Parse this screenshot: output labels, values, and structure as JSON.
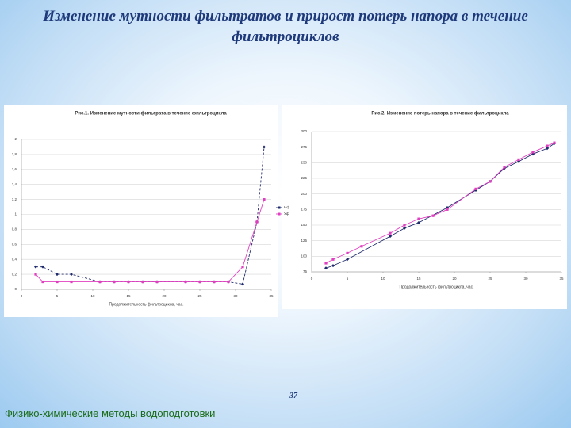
{
  "title": "Изменение мутности фильтратов и прирост потерь напора в течение фильтроциклов",
  "page_number": "37",
  "footer": "Физико-химические методы водоподготовки",
  "chart_data": [
    {
      "type": "line",
      "title": "Рис.1. Изменение мутности фильтрата в течение фильтроцикла",
      "x_label": "Продолжительность фильтроцикла, час.",
      "xlim": [
        0,
        35
      ],
      "xticks": [
        0,
        5,
        10,
        15,
        20,
        25,
        30,
        35
      ],
      "ylim": [
        0,
        2
      ],
      "yticks": [
        0,
        {
          "value": 0.2,
          "label": "0,2"
        },
        {
          "value": 0.4,
          "label": "0,4"
        },
        {
          "value": 0.6,
          "label": "0,6"
        },
        {
          "value": 0.8,
          "label": "0,8"
        },
        1,
        {
          "value": 1.2,
          "label": "1,2"
        },
        {
          "value": 1.4,
          "label": "1,4"
        },
        {
          "value": 1.6,
          "label": "1,6"
        },
        {
          "value": 1.8,
          "label": "1,8"
        },
        2
      ],
      "grid": true,
      "legend": "right",
      "series": [
        {
          "name": "Нф",
          "color": "#1f2a6b",
          "marker": "diamond",
          "dashed": true,
          "x": [
            2,
            3,
            5,
            7,
            11,
            13,
            15,
            17,
            19,
            23,
            25,
            27,
            29,
            31,
            33,
            34
          ],
          "values": [
            0.3,
            0.3,
            0.2,
            0.2,
            0.1,
            0.1,
            0.1,
            0.1,
            0.1,
            0.1,
            0.1,
            0.1,
            0.1,
            0.07,
            0.9,
            1.9
          ]
        },
        {
          "name": "Уф",
          "color": "#e040c0",
          "marker": "square",
          "dashed": false,
          "x": [
            2,
            3,
            5,
            7,
            11,
            13,
            15,
            17,
            19,
            23,
            25,
            27,
            29,
            31,
            33,
            34
          ],
          "values": [
            0.2,
            0.1,
            0.1,
            0.1,
            0.1,
            0.1,
            0.1,
            0.1,
            0.1,
            0.1,
            0.1,
            0.1,
            0.1,
            0.3,
            0.9,
            1.2
          ]
        }
      ]
    },
    {
      "type": "line",
      "title": "Рис.2. Изменение потерь напора в течение фильтроцикла",
      "x_label": "Продолжительность фильтроцикла, час.",
      "xlim": [
        0,
        35
      ],
      "xticks": [
        0,
        5,
        10,
        15,
        20,
        25,
        30,
        35
      ],
      "ylim": [
        75,
        300
      ],
      "yticks": [
        75,
        100,
        125,
        150,
        175,
        200,
        225,
        250,
        275,
        300
      ],
      "grid": true,
      "series": [
        {
          "color": "#1f2a6b",
          "marker": "diamond",
          "dashed": false,
          "x": [
            2,
            3,
            5,
            11,
            13,
            15,
            19,
            23,
            25,
            27,
            29,
            31,
            33,
            34
          ],
          "values": [
            81,
            85,
            95,
            132,
            145,
            154,
            178,
            206,
            220,
            241,
            252,
            264,
            273,
            281
          ]
        },
        {
          "color": "#e040c0",
          "marker": "square",
          "dashed": false,
          "x": [
            2,
            3,
            5,
            7,
            11,
            13,
            15,
            17,
            19,
            23,
            25,
            27,
            29,
            31,
            33,
            34
          ],
          "values": [
            89,
            95,
            105,
            116,
            137,
            150,
            160,
            165,
            175,
            208,
            220,
            243,
            255,
            267,
            277,
            282
          ]
        }
      ]
    }
  ]
}
